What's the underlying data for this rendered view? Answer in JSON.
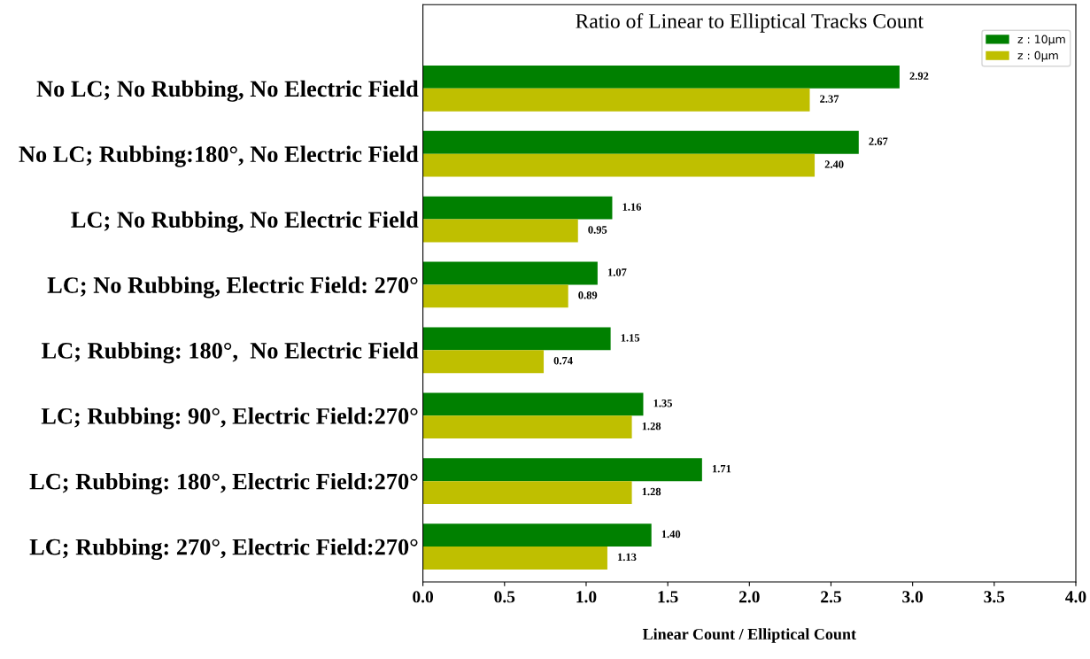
{
  "chart_data": {
    "type": "bar",
    "orientation": "horizontal",
    "title": "Ratio of Linear to Elliptical Tracks Count",
    "xlabel": "Linear Count / Elliptical Count",
    "categories": [
      "No LC; No Rubbing, No Electric Field",
      "No LC; Rubbing:180°, No Electric Field",
      "LC; No Rubbing, No Electric Field",
      "LC; No Rubbing, Electric Field: 270°",
      "LC; Rubbing: 180°,  No Electric Field",
      "LC; Rubbing: 90°, Electric Field:270°",
      "LC; Rubbing: 180°, Electric Field:270°",
      "LC; Rubbing: 270°, Electric Field:270°"
    ],
    "series": [
      {
        "name": "z : 10μm",
        "color": "#008000",
        "values": [
          2.92,
          2.67,
          1.16,
          1.07,
          1.15,
          1.35,
          1.71,
          1.4
        ],
        "value_labels": [
          "2.92",
          "2.67",
          "1.16",
          "1.07",
          "1.15",
          "1.35",
          "1.71",
          "1.40"
        ]
      },
      {
        "name": "z : 0μm",
        "color": "#bfbf00",
        "values": [
          2.37,
          2.4,
          0.95,
          0.89,
          0.74,
          1.28,
          1.28,
          1.13
        ],
        "value_labels": [
          "2.37",
          "2.40",
          "0.95",
          "0.89",
          "0.74",
          "1.28",
          "1.28",
          "1.13"
        ]
      }
    ],
    "xlim": [
      0,
      4
    ],
    "xticks": [
      {
        "value": 0,
        "label": "0.0"
      },
      {
        "value": 0.5,
        "label": "0.5"
      },
      {
        "value": 1,
        "label": "1.0"
      },
      {
        "value": 1.5,
        "label": "1.5"
      },
      {
        "value": 2,
        "label": "2.0"
      },
      {
        "value": 2.5,
        "label": "2.5"
      },
      {
        "value": 3,
        "label": "3.0"
      },
      {
        "value": 3.5,
        "label": "3.5"
      },
      {
        "value": 4,
        "label": "4.0"
      }
    ],
    "legend": "top right",
    "grid": false
  }
}
